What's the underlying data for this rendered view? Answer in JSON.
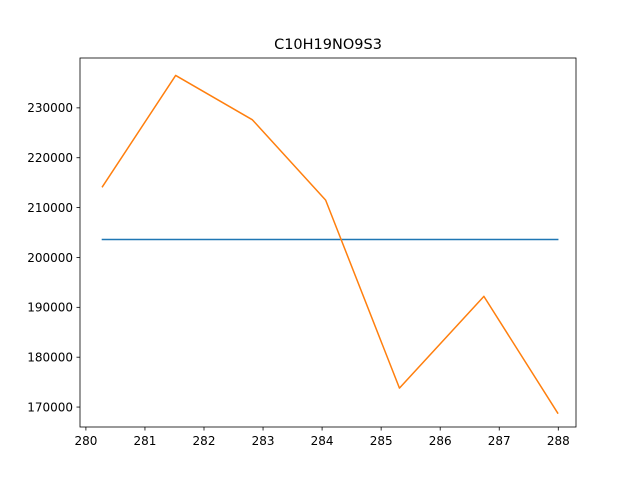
{
  "chart_data": {
    "type": "line",
    "title": "C10H19NO9S3",
    "xlabel": "",
    "ylabel": "",
    "xlim": [
      279.9,
      288.3
    ],
    "ylim": [
      166000,
      240000
    ],
    "x_ticks": [
      280,
      281,
      282,
      283,
      284,
      285,
      286,
      287,
      288
    ],
    "y_ticks": [
      170000,
      180000,
      190000,
      200000,
      210000,
      220000,
      230000
    ],
    "grid": false,
    "legend": "none",
    "series": [
      {
        "color": "#1f77b4",
        "x": [
          280.28,
          287.99
        ],
        "y": [
          203600,
          203600
        ]
      },
      {
        "color": "#ff7f0e",
        "x": [
          280.28,
          281.52,
          282.82,
          284.06,
          285.31,
          286.74,
          287.99
        ],
        "y": [
          214200,
          236500,
          227600,
          211500,
          173800,
          192200,
          168800
        ]
      }
    ]
  }
}
